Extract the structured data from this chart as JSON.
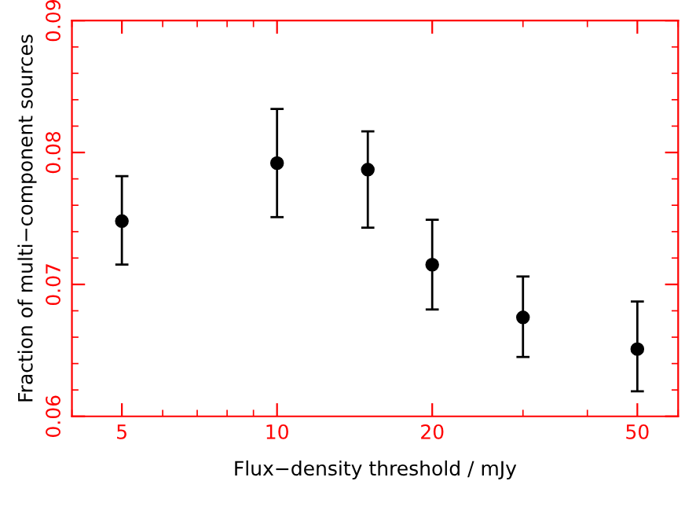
{
  "chart_data": {
    "type": "scatter",
    "xlabel": "Flux−density threshold / mJy",
    "ylabel": "Fraction of multi−component sources",
    "x": [
      5,
      10,
      15,
      20,
      30,
      50
    ],
    "series": [
      {
        "color": "#000000",
        "values": [
          0.0748,
          0.0792,
          0.0787,
          0.0715,
          0.0675,
          0.0651
        ],
        "errors": [
          [
            0.0715,
            0.0782
          ],
          [
            0.0751,
            0.0833
          ],
          [
            0.0743,
            0.0816
          ],
          [
            0.0681,
            0.0749
          ],
          [
            0.0645,
            0.0706
          ],
          [
            0.0619,
            0.0687
          ]
        ]
      }
    ],
    "log": "x",
    "xlim": [
      4,
      60
    ],
    "xticks": [
      5,
      10,
      20,
      50
    ],
    "ylim": [
      0.06,
      0.09
    ],
    "yticks": [
      0.06,
      0.07,
      0.08,
      0.09
    ],
    "marker": "circle",
    "grid": false,
    "legend": false
  }
}
